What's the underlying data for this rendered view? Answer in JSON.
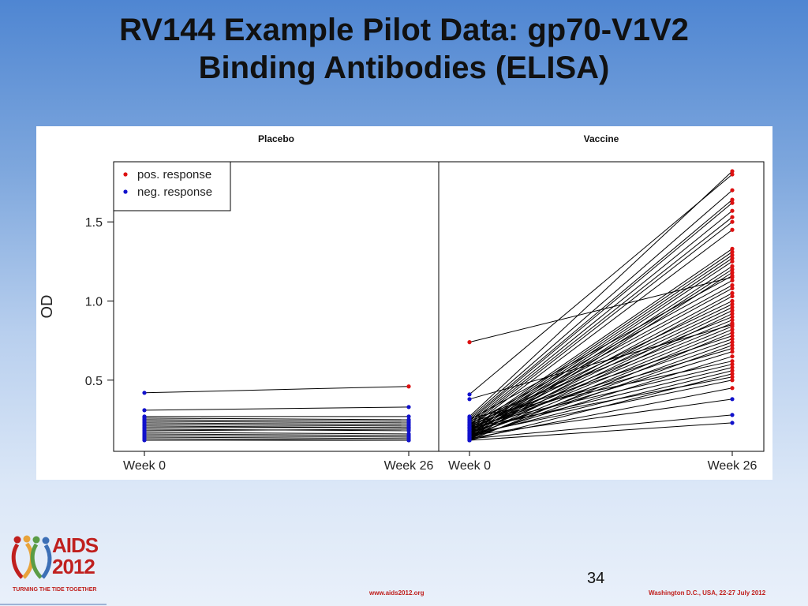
{
  "slide": {
    "title_line1": "RV144 Example Pilot Data: gp70-V1V2",
    "title_line2": "Binding Antibodies (ELISA)",
    "page_number": "34",
    "footer_url": "www.aids2012.org",
    "footer_location": "Washington D.C., USA, 22-27 July 2012"
  },
  "logo": {
    "word": "AIDS",
    "year": "2012",
    "tagline": "TURNING THE TIDE TOGETHER",
    "ribbon_colors": [
      "#c0201e",
      "#e8a33a",
      "#5a9c46",
      "#3c6fb6",
      "#a8a8a8"
    ]
  },
  "colors": {
    "positive": "#dd1111",
    "negative": "#1111cc",
    "line": "#000000"
  },
  "chart_data": {
    "type": "line",
    "ylabel": "OD",
    "ylim": [
      0.05,
      1.88
    ],
    "yticks": [
      0.5,
      1.0,
      1.5
    ],
    "ytick_labels": [
      "0.5",
      "1.0",
      "1.5"
    ],
    "x_labels": [
      "Week 0",
      "Week 26"
    ],
    "legend": {
      "placement": "top-left",
      "entries": [
        {
          "label": "pos. response",
          "color": "#dd1111"
        },
        {
          "label": "neg. response",
          "color": "#1111cc"
        }
      ]
    },
    "panels": [
      {
        "title": "Placebo",
        "pairs": [
          [
            0.42,
            0.46,
            "pos"
          ],
          [
            0.31,
            0.33,
            "neg"
          ],
          [
            0.27,
            0.27,
            "neg"
          ],
          [
            0.26,
            0.25,
            "neg"
          ],
          [
            0.25,
            0.24,
            "neg"
          ],
          [
            0.24,
            0.23,
            "neg"
          ],
          [
            0.23,
            0.22,
            "neg"
          ],
          [
            0.22,
            0.21,
            "neg"
          ],
          [
            0.21,
            0.2,
            "neg"
          ],
          [
            0.2,
            0.2,
            "neg"
          ],
          [
            0.19,
            0.18,
            "neg"
          ],
          [
            0.18,
            0.19,
            "neg"
          ],
          [
            0.17,
            0.16,
            "neg"
          ],
          [
            0.16,
            0.15,
            "neg"
          ],
          [
            0.15,
            0.14,
            "neg"
          ],
          [
            0.14,
            0.13,
            "neg"
          ],
          [
            0.13,
            0.12,
            "neg"
          ],
          [
            0.12,
            0.12,
            "neg"
          ]
        ]
      },
      {
        "title": "Vaccine",
        "pairs": [
          [
            0.74,
            1.15,
            "pos"
          ],
          [
            0.41,
            1.8,
            "pos"
          ],
          [
            0.38,
            0.85,
            "pos"
          ],
          [
            0.27,
            1.82,
            "pos"
          ],
          [
            0.26,
            1.7,
            "pos"
          ],
          [
            0.25,
            1.64,
            "pos"
          ],
          [
            0.24,
            1.62,
            "pos"
          ],
          [
            0.23,
            1.57,
            "pos"
          ],
          [
            0.22,
            1.53,
            "pos"
          ],
          [
            0.21,
            1.5,
            "pos"
          ],
          [
            0.2,
            1.45,
            "pos"
          ],
          [
            0.19,
            1.33,
            "pos"
          ],
          [
            0.18,
            1.31,
            "pos"
          ],
          [
            0.17,
            1.29,
            "pos"
          ],
          [
            0.16,
            1.27,
            "pos"
          ],
          [
            0.15,
            1.25,
            "pos"
          ],
          [
            0.14,
            1.22,
            "pos"
          ],
          [
            0.13,
            1.2,
            "pos"
          ],
          [
            0.12,
            1.18,
            "pos"
          ],
          [
            0.25,
            1.16,
            "pos"
          ],
          [
            0.22,
            1.13,
            "pos"
          ],
          [
            0.2,
            1.1,
            "pos"
          ],
          [
            0.18,
            1.08,
            "pos"
          ],
          [
            0.16,
            1.05,
            "pos"
          ],
          [
            0.14,
            1.03,
            "pos"
          ],
          [
            0.21,
            1.0,
            "pos"
          ],
          [
            0.19,
            0.98,
            "pos"
          ],
          [
            0.17,
            0.96,
            "pos"
          ],
          [
            0.15,
            0.94,
            "pos"
          ],
          [
            0.13,
            0.92,
            "pos"
          ],
          [
            0.24,
            0.9,
            "pos"
          ],
          [
            0.2,
            0.88,
            "pos"
          ],
          [
            0.18,
            0.86,
            "pos"
          ],
          [
            0.16,
            0.84,
            "pos"
          ],
          [
            0.14,
            0.82,
            "pos"
          ],
          [
            0.12,
            0.8,
            "pos"
          ],
          [
            0.23,
            0.78,
            "pos"
          ],
          [
            0.19,
            0.76,
            "pos"
          ],
          [
            0.15,
            0.74,
            "pos"
          ],
          [
            0.13,
            0.72,
            "pos"
          ],
          [
            0.22,
            0.7,
            "pos"
          ],
          [
            0.17,
            0.68,
            "pos"
          ],
          [
            0.14,
            0.65,
            "pos"
          ],
          [
            0.26,
            0.62,
            "pos"
          ],
          [
            0.21,
            0.6,
            "pos"
          ],
          [
            0.18,
            0.58,
            "pos"
          ],
          [
            0.15,
            0.56,
            "pos"
          ],
          [
            0.12,
            0.54,
            "pos"
          ],
          [
            0.2,
            0.52,
            "pos"
          ],
          [
            0.16,
            0.5,
            "pos"
          ],
          [
            0.13,
            0.45,
            "pos"
          ],
          [
            0.15,
            0.38,
            "neg"
          ],
          [
            0.13,
            0.28,
            "neg"
          ],
          [
            0.12,
            0.23,
            "neg"
          ]
        ]
      }
    ]
  }
}
